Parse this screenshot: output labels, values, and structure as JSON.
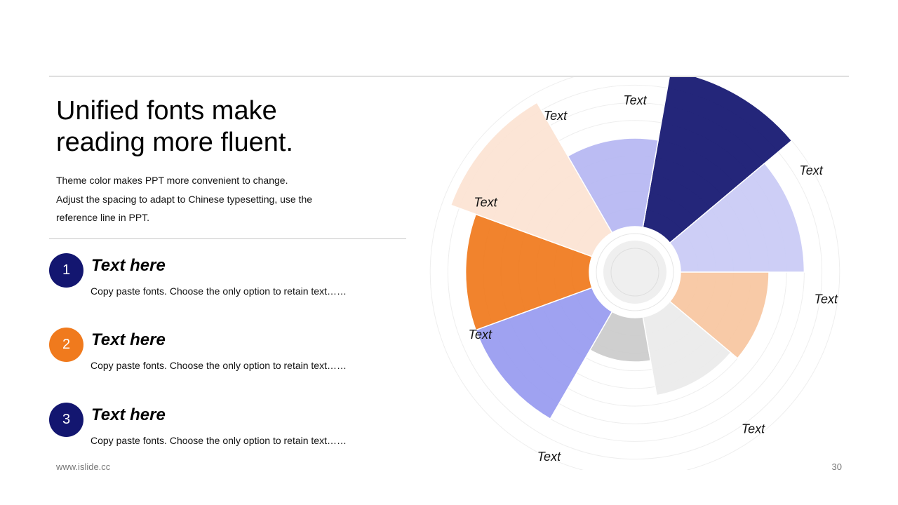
{
  "slide": {
    "title_line1": "Unified fonts make",
    "title_line2": "reading more fluent.",
    "desc_line1": "Theme color makes PPT more convenient  to change.",
    "desc_line2": "Adjust the spacing to adapt to Chinese typesetting, use the",
    "desc_line3": "reference line  in PPT.",
    "items": [
      {
        "number": "1",
        "heading": "Text here",
        "body": "Copy paste fonts. Choose the only option to retain text……",
        "color": "#131670"
      },
      {
        "number": "2",
        "heading": "Text here",
        "body": "Copy paste fonts. Choose the only option to retain text……",
        "color": "#F07A1D"
      },
      {
        "number": "3",
        "heading": "Text here",
        "body": "Copy paste fonts. Choose the only option to retain text……",
        "color": "#131670"
      }
    ],
    "footer_url": "www.islide.cc",
    "page_number": "30"
  },
  "chart_data": {
    "type": "rose",
    "categories": [
      "Text",
      "Text",
      "Text",
      "Text",
      "Text",
      "Text",
      "Text",
      "Text",
      "Text"
    ],
    "values": [
      9.0,
      7.0,
      5.0,
      4.5,
      2.5,
      7.0,
      7.0,
      8.5,
      5.0
    ],
    "colors": [
      "#131670",
      "#C9CAF5",
      "#F8C6A0",
      "#EBEBEB",
      "#CBCBCB",
      "#989BF0",
      "#F07A1D",
      "#FCE3D3",
      "#B6B7F2"
    ],
    "grid": true,
    "ring_levels": [
      1,
      2,
      3,
      4,
      5,
      6,
      7,
      8,
      9
    ]
  }
}
